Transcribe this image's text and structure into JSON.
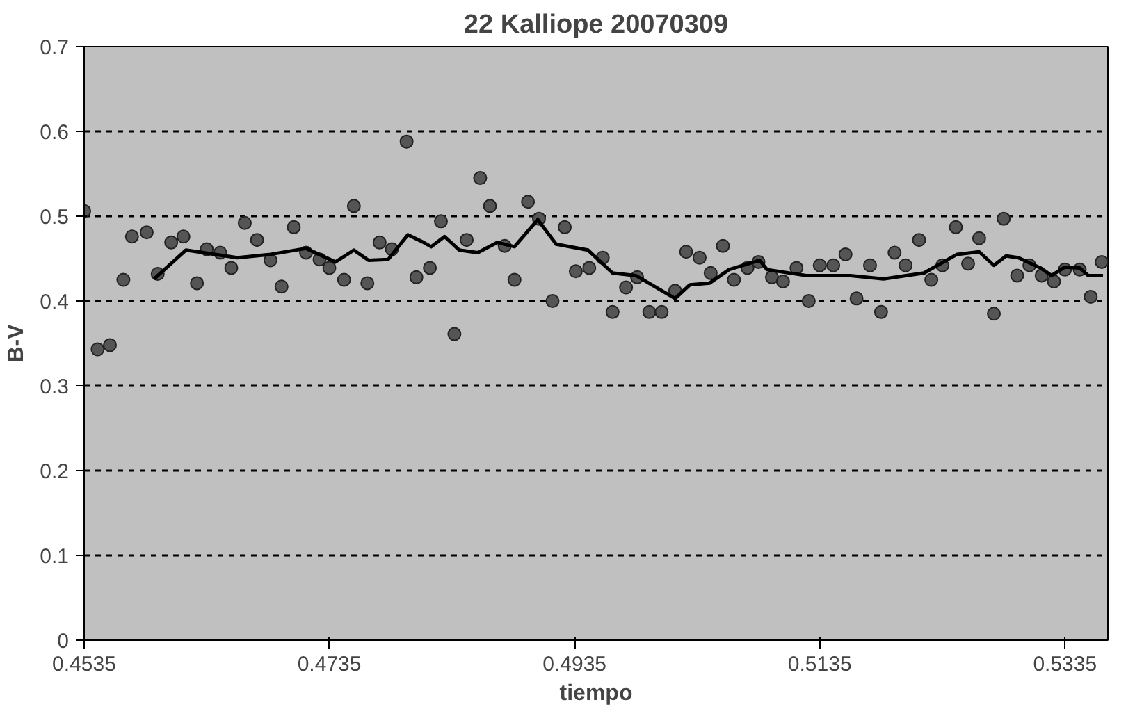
{
  "chart_data": {
    "type": "scatter",
    "title": "22 Kalliope 20070309",
    "xlabel": "tiempo",
    "ylabel": "B-V",
    "xlim": [
      0.4535,
      0.537
    ],
    "xticks": [
      0.4535,
      0.4735,
      0.4935,
      0.5135,
      0.5335
    ],
    "ylim": [
      0,
      0.7
    ],
    "yticks": [
      0,
      0.1,
      0.2,
      0.3,
      0.4,
      0.5,
      0.6,
      0.7
    ],
    "grid": "y",
    "line_style": "solid",
    "series": [
      {
        "marker": "circle",
        "color": "#555555",
        "x": [
          0.4535,
          0.4546,
          0.4556,
          0.4567,
          0.4574,
          0.4586,
          0.4595,
          0.4606,
          0.4616,
          0.4627,
          0.4635,
          0.4646,
          0.4655,
          0.4666,
          0.4676,
          0.4687,
          0.4696,
          0.4706,
          0.4716,
          0.4727,
          0.4735,
          0.4747,
          0.4755,
          0.4766,
          0.4776,
          0.4786,
          0.4798,
          0.4806,
          0.4817,
          0.4826,
          0.4837,
          0.4847,
          0.4858,
          0.4866,
          0.4878,
          0.4886,
          0.4897,
          0.4906,
          0.4917,
          0.4927,
          0.4936,
          0.4947,
          0.4958,
          0.4966,
          0.4977,
          0.4986,
          0.4996,
          0.5006,
          0.5017,
          0.5026,
          0.5037,
          0.5046,
          0.5056,
          0.5065,
          0.5076,
          0.5085,
          0.5096,
          0.5105,
          0.5116,
          0.5126,
          0.5135,
          0.5146,
          0.5156,
          0.5165,
          0.5176,
          0.5185,
          0.5196,
          0.5205,
          0.5216,
          0.5226,
          0.5235,
          0.5246,
          0.5256,
          0.5265,
          0.5277,
          0.5285,
          0.5296,
          0.5306,
          0.5316,
          0.5326,
          0.5335,
          0.5347,
          0.5356,
          0.5365
        ],
        "values": [
          0.506,
          0.343,
          0.348,
          0.425,
          0.476,
          0.481,
          0.432,
          0.469,
          0.476,
          0.421,
          0.461,
          0.457,
          0.439,
          0.492,
          0.472,
          0.448,
          0.417,
          0.487,
          0.457,
          0.449,
          0.439,
          0.425,
          0.512,
          0.421,
          0.469,
          0.461,
          0.588,
          0.428,
          0.439,
          0.494,
          0.361,
          0.472,
          0.545,
          0.512,
          0.465,
          0.425,
          0.517,
          0.497,
          0.4,
          0.487,
          0.435,
          0.439,
          0.451,
          0.387,
          0.416,
          0.428,
          0.387,
          0.387,
          0.412,
          0.458,
          0.451,
          0.433,
          0.465,
          0.425,
          0.439,
          0.446,
          0.428,
          0.423,
          0.439,
          0.4,
          0.442,
          0.442,
          0.455,
          0.403,
          0.442,
          0.387,
          0.457,
          0.442,
          0.472,
          0.425,
          0.442,
          0.487,
          0.444,
          0.474,
          0.385,
          0.497,
          0.43,
          0.442,
          0.43,
          0.423,
          0.437,
          0.437,
          0.405,
          0.446
        ]
      },
      {
        "type": "line",
        "color": "#000000",
        "x": [
          0.4592,
          0.4618,
          0.466,
          0.4687,
          0.4716,
          0.474,
          0.4755,
          0.4767,
          0.4783,
          0.4799,
          0.4812,
          0.4818,
          0.4829,
          0.4841,
          0.4856,
          0.4872,
          0.4886,
          0.4905,
          0.492,
          0.4946,
          0.4966,
          0.4985,
          0.5017,
          0.5029,
          0.5045,
          0.5061,
          0.5086,
          0.5092,
          0.5124,
          0.516,
          0.5187,
          0.522,
          0.5247,
          0.5265,
          0.5277,
          0.5287,
          0.5297,
          0.5315,
          0.5324,
          0.5335,
          0.5347,
          0.5354,
          0.5366
        ],
        "values": [
          0.426,
          0.46,
          0.451,
          0.455,
          0.462,
          0.446,
          0.46,
          0.448,
          0.449,
          0.478,
          0.469,
          0.464,
          0.476,
          0.46,
          0.457,
          0.469,
          0.464,
          0.496,
          0.467,
          0.46,
          0.433,
          0.43,
          0.403,
          0.419,
          0.421,
          0.437,
          0.448,
          0.437,
          0.43,
          0.43,
          0.426,
          0.433,
          0.455,
          0.458,
          0.442,
          0.453,
          0.451,
          0.439,
          0.43,
          0.44,
          0.439,
          0.43,
          0.43
        ]
      }
    ]
  }
}
